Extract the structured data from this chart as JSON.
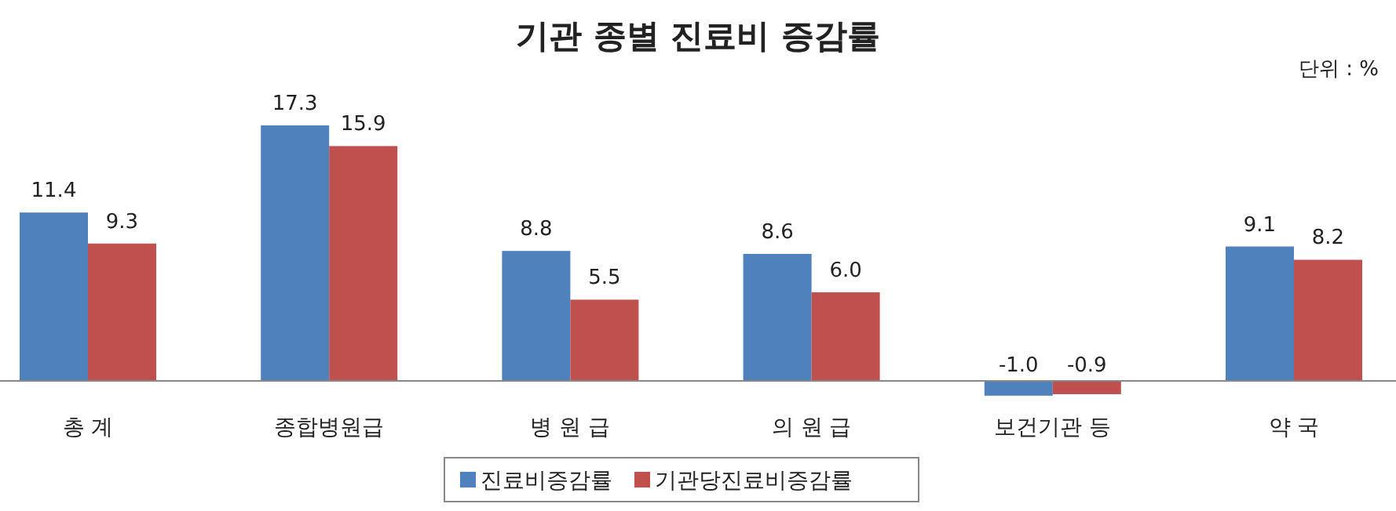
{
  "chart_data": {
    "type": "bar",
    "title": "기관 종별 진료비 증감률",
    "annotations": [
      "단위 : %"
    ],
    "categories": [
      "총 계",
      "종합병원급",
      "병 원 급",
      "의 원 급",
      "보건기관 등",
      "약 국"
    ],
    "series": [
      {
        "name": "진료비증감률",
        "color": "#4f81bd",
        "values": [
          11.4,
          17.3,
          8.8,
          8.6,
          -1.0,
          9.1
        ],
        "value_labels": [
          "11.4",
          "17.3",
          "8.8",
          "8.6",
          "-1.0",
          "9.1"
        ]
      },
      {
        "name": "기관당진료비증감률",
        "color": "#c0504d",
        "values": [
          9.3,
          15.9,
          5.5,
          6.0,
          -0.9,
          8.2
        ],
        "value_labels": [
          "9.3",
          "15.9",
          "5.5",
          "6.0",
          "-0.9",
          "8.2"
        ]
      }
    ],
    "legend": "bottom"
  }
}
